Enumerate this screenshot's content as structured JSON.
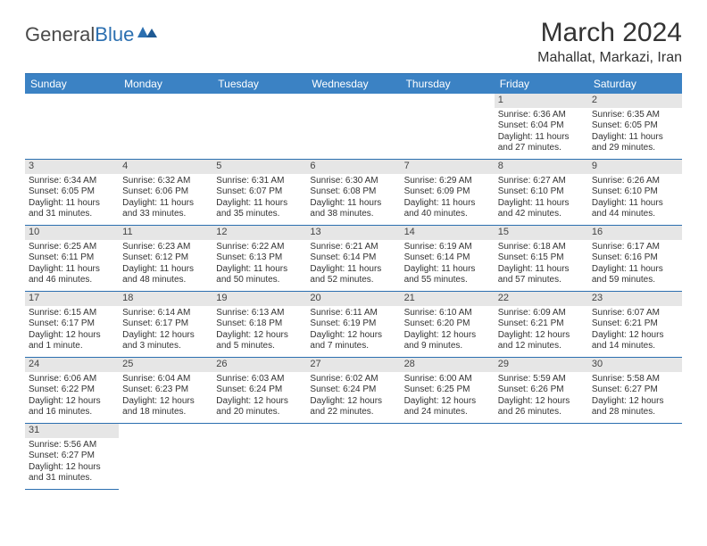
{
  "logo": {
    "word1": "General",
    "word2": "Blue"
  },
  "title": "March 2024",
  "location": "Mahallat, Markazi, Iran",
  "colors": {
    "header_bg": "#3b82c4",
    "header_text": "#ffffff",
    "border": "#2b6fb0",
    "daynum_bg": "#e6e6e6",
    "logo_blue": "#2b6fb0",
    "text": "#333333"
  },
  "weekdays": [
    "Sunday",
    "Monday",
    "Tuesday",
    "Wednesday",
    "Thursday",
    "Friday",
    "Saturday"
  ],
  "days": [
    {
      "n": "",
      "sunrise": "",
      "sunset": "",
      "daylight": ""
    },
    {
      "n": "",
      "sunrise": "",
      "sunset": "",
      "daylight": ""
    },
    {
      "n": "",
      "sunrise": "",
      "sunset": "",
      "daylight": ""
    },
    {
      "n": "",
      "sunrise": "",
      "sunset": "",
      "daylight": ""
    },
    {
      "n": "",
      "sunrise": "",
      "sunset": "",
      "daylight": ""
    },
    {
      "n": "1",
      "sunrise": "Sunrise: 6:36 AM",
      "sunset": "Sunset: 6:04 PM",
      "daylight": "Daylight: 11 hours and 27 minutes."
    },
    {
      "n": "2",
      "sunrise": "Sunrise: 6:35 AM",
      "sunset": "Sunset: 6:05 PM",
      "daylight": "Daylight: 11 hours and 29 minutes."
    },
    {
      "n": "3",
      "sunrise": "Sunrise: 6:34 AM",
      "sunset": "Sunset: 6:05 PM",
      "daylight": "Daylight: 11 hours and 31 minutes."
    },
    {
      "n": "4",
      "sunrise": "Sunrise: 6:32 AM",
      "sunset": "Sunset: 6:06 PM",
      "daylight": "Daylight: 11 hours and 33 minutes."
    },
    {
      "n": "5",
      "sunrise": "Sunrise: 6:31 AM",
      "sunset": "Sunset: 6:07 PM",
      "daylight": "Daylight: 11 hours and 35 minutes."
    },
    {
      "n": "6",
      "sunrise": "Sunrise: 6:30 AM",
      "sunset": "Sunset: 6:08 PM",
      "daylight": "Daylight: 11 hours and 38 minutes."
    },
    {
      "n": "7",
      "sunrise": "Sunrise: 6:29 AM",
      "sunset": "Sunset: 6:09 PM",
      "daylight": "Daylight: 11 hours and 40 minutes."
    },
    {
      "n": "8",
      "sunrise": "Sunrise: 6:27 AM",
      "sunset": "Sunset: 6:10 PM",
      "daylight": "Daylight: 11 hours and 42 minutes."
    },
    {
      "n": "9",
      "sunrise": "Sunrise: 6:26 AM",
      "sunset": "Sunset: 6:10 PM",
      "daylight": "Daylight: 11 hours and 44 minutes."
    },
    {
      "n": "10",
      "sunrise": "Sunrise: 6:25 AM",
      "sunset": "Sunset: 6:11 PM",
      "daylight": "Daylight: 11 hours and 46 minutes."
    },
    {
      "n": "11",
      "sunrise": "Sunrise: 6:23 AM",
      "sunset": "Sunset: 6:12 PM",
      "daylight": "Daylight: 11 hours and 48 minutes."
    },
    {
      "n": "12",
      "sunrise": "Sunrise: 6:22 AM",
      "sunset": "Sunset: 6:13 PM",
      "daylight": "Daylight: 11 hours and 50 minutes."
    },
    {
      "n": "13",
      "sunrise": "Sunrise: 6:21 AM",
      "sunset": "Sunset: 6:14 PM",
      "daylight": "Daylight: 11 hours and 52 minutes."
    },
    {
      "n": "14",
      "sunrise": "Sunrise: 6:19 AM",
      "sunset": "Sunset: 6:14 PM",
      "daylight": "Daylight: 11 hours and 55 minutes."
    },
    {
      "n": "15",
      "sunrise": "Sunrise: 6:18 AM",
      "sunset": "Sunset: 6:15 PM",
      "daylight": "Daylight: 11 hours and 57 minutes."
    },
    {
      "n": "16",
      "sunrise": "Sunrise: 6:17 AM",
      "sunset": "Sunset: 6:16 PM",
      "daylight": "Daylight: 11 hours and 59 minutes."
    },
    {
      "n": "17",
      "sunrise": "Sunrise: 6:15 AM",
      "sunset": "Sunset: 6:17 PM",
      "daylight": "Daylight: 12 hours and 1 minute."
    },
    {
      "n": "18",
      "sunrise": "Sunrise: 6:14 AM",
      "sunset": "Sunset: 6:17 PM",
      "daylight": "Daylight: 12 hours and 3 minutes."
    },
    {
      "n": "19",
      "sunrise": "Sunrise: 6:13 AM",
      "sunset": "Sunset: 6:18 PM",
      "daylight": "Daylight: 12 hours and 5 minutes."
    },
    {
      "n": "20",
      "sunrise": "Sunrise: 6:11 AM",
      "sunset": "Sunset: 6:19 PM",
      "daylight": "Daylight: 12 hours and 7 minutes."
    },
    {
      "n": "21",
      "sunrise": "Sunrise: 6:10 AM",
      "sunset": "Sunset: 6:20 PM",
      "daylight": "Daylight: 12 hours and 9 minutes."
    },
    {
      "n": "22",
      "sunrise": "Sunrise: 6:09 AM",
      "sunset": "Sunset: 6:21 PM",
      "daylight": "Daylight: 12 hours and 12 minutes."
    },
    {
      "n": "23",
      "sunrise": "Sunrise: 6:07 AM",
      "sunset": "Sunset: 6:21 PM",
      "daylight": "Daylight: 12 hours and 14 minutes."
    },
    {
      "n": "24",
      "sunrise": "Sunrise: 6:06 AM",
      "sunset": "Sunset: 6:22 PM",
      "daylight": "Daylight: 12 hours and 16 minutes."
    },
    {
      "n": "25",
      "sunrise": "Sunrise: 6:04 AM",
      "sunset": "Sunset: 6:23 PM",
      "daylight": "Daylight: 12 hours and 18 minutes."
    },
    {
      "n": "26",
      "sunrise": "Sunrise: 6:03 AM",
      "sunset": "Sunset: 6:24 PM",
      "daylight": "Daylight: 12 hours and 20 minutes."
    },
    {
      "n": "27",
      "sunrise": "Sunrise: 6:02 AM",
      "sunset": "Sunset: 6:24 PM",
      "daylight": "Daylight: 12 hours and 22 minutes."
    },
    {
      "n": "28",
      "sunrise": "Sunrise: 6:00 AM",
      "sunset": "Sunset: 6:25 PM",
      "daylight": "Daylight: 12 hours and 24 minutes."
    },
    {
      "n": "29",
      "sunrise": "Sunrise: 5:59 AM",
      "sunset": "Sunset: 6:26 PM",
      "daylight": "Daylight: 12 hours and 26 minutes."
    },
    {
      "n": "30",
      "sunrise": "Sunrise: 5:58 AM",
      "sunset": "Sunset: 6:27 PM",
      "daylight": "Daylight: 12 hours and 28 minutes."
    },
    {
      "n": "31",
      "sunrise": "Sunrise: 5:56 AM",
      "sunset": "Sunset: 6:27 PM",
      "daylight": "Daylight: 12 hours and 31 minutes."
    }
  ]
}
